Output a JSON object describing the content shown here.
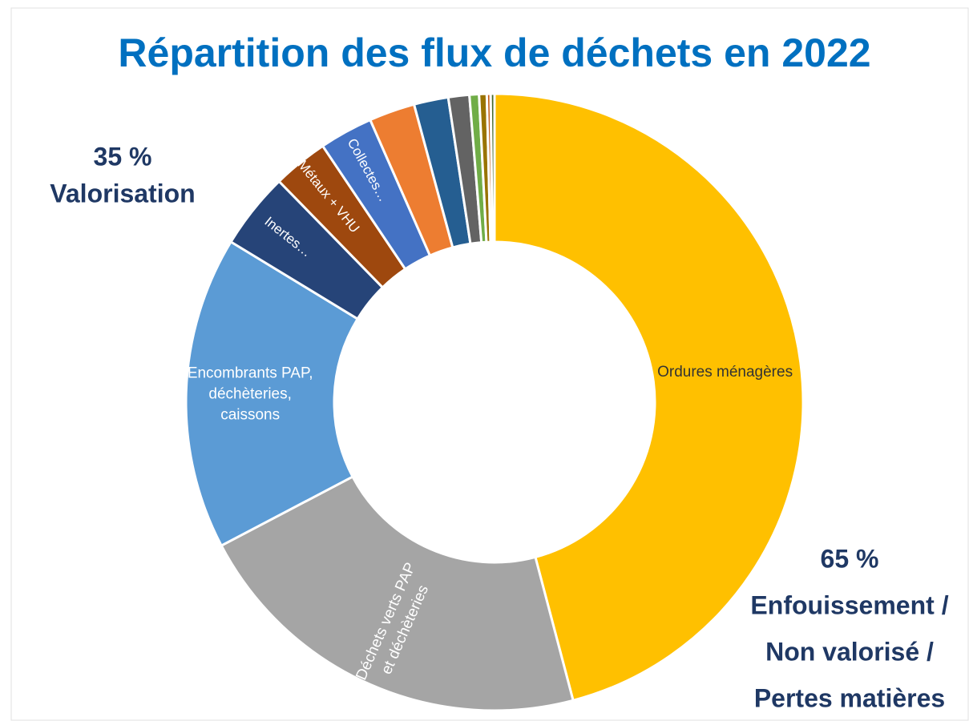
{
  "chart_data": {
    "type": "donut",
    "title": "Répartition des flux de déchets en 2022",
    "categories": [
      "Ordures ménagères",
      [
        "Déchets verts PAP",
        "et déchèteries"
      ],
      [
        "Encombrants PAP,",
        "déchèteries,",
        "caissons"
      ],
      "Inertes…",
      "Métaux + VHU",
      "Collectes…",
      null,
      null,
      null,
      null,
      null,
      null,
      null
    ],
    "values": [
      45.9,
      21.4,
      16.4,
      4.0,
      2.9,
      2.8,
      2.4,
      1.8,
      1.1,
      0.5,
      0.4,
      0.2,
      0.2
    ],
    "colors": [
      "#ffc000",
      "#a5a5a5",
      "#5b9bd5",
      "#264478",
      "#9e480e",
      "#4472c4",
      "#ed7d31",
      "#255e91",
      "#636363",
      "#70ad47",
      "#997300",
      "#c55a11",
      "#43682b"
    ],
    "annotations": [
      [
        "35 %",
        "Valorisation"
      ],
      [
        "65 %",
        "Enfouissement /",
        "Non valorisé /",
        "Pertes matières"
      ]
    ]
  }
}
